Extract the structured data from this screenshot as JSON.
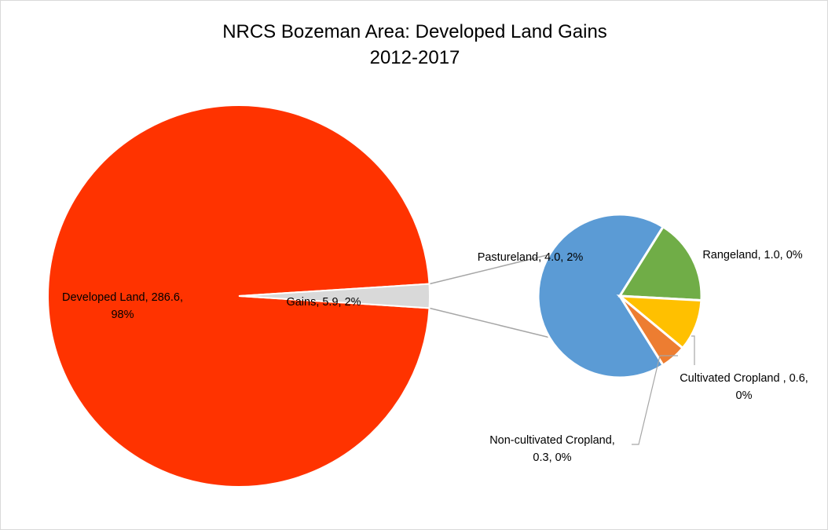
{
  "chart_data": {
    "type": "pie",
    "subtype": "pie-of-pie",
    "title": [
      "NRCS Bozeman Area: Developed Land Gains",
      "2012-2017"
    ],
    "main_pie": {
      "slices": [
        {
          "name": "Developed Land",
          "value": 286.6,
          "percent": "98%",
          "color": "#FF3300",
          "label": [
            "Developed Land, 286.6,",
            "98%"
          ]
        },
        {
          "name": "Gains",
          "value": 5.9,
          "percent": "2%",
          "color": "#D9D9D9",
          "label": [
            "Gains, 5.9, 2%"
          ]
        }
      ]
    },
    "secondary_pie": {
      "slices": [
        {
          "name": "Pastureland",
          "value": 4.0,
          "percent": "2%",
          "color": "#5B9BD5",
          "label": [
            "Pastureland, 4.0, 2%"
          ]
        },
        {
          "name": "Rangeland",
          "value": 1.0,
          "percent": "0%",
          "color": "#70AD47",
          "label": [
            "Rangeland, 1.0, 0%"
          ]
        },
        {
          "name": "Cultivated Cropland",
          "value": 0.6,
          "percent": "0%",
          "color": "#FFC000",
          "label": [
            "Cultivated Cropland , 0.6,",
            "0%"
          ]
        },
        {
          "name": "Non-cultivated Cropland",
          "value": 0.3,
          "percent": "0%",
          "color": "#ED7D31",
          "label": [
            "Non-cultivated Cropland,",
            "0.3, 0%"
          ]
        }
      ]
    },
    "legend": "none",
    "connector_color": "#A6A6A6"
  }
}
